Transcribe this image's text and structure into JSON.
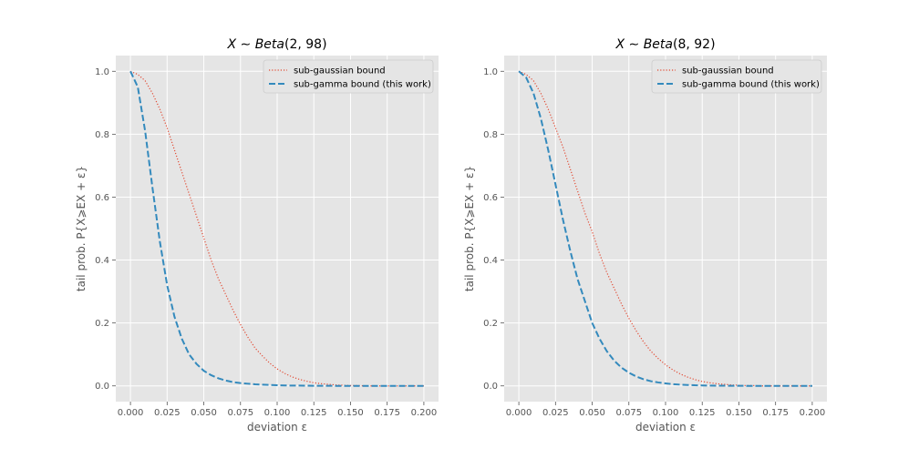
{
  "chart_data": [
    {
      "type": "line",
      "title_prefix": "X ∼ ",
      "title_dist": "Beta",
      "title_params": "(2, 98)",
      "xlabel": "deviation ε",
      "ylabel": "tail prob. P{X⩾EX + ε}",
      "xlim": [
        -0.01,
        0.21
      ],
      "ylim": [
        -0.05,
        1.05
      ],
      "xticks": [
        "0.000",
        "0.025",
        "0.050",
        "0.075",
        "0.100",
        "0.125",
        "0.150",
        "0.175",
        "0.200"
      ],
      "yticks": [
        "0.0",
        "0.2",
        "0.4",
        "0.6",
        "0.8",
        "1.0"
      ],
      "legend_position": "top-right",
      "grid": true,
      "series": [
        {
          "name": "sub-gaussian bound",
          "style": "dotted",
          "color": "#E24A33",
          "x": [
            0,
            0.005,
            0.01,
            0.015,
            0.02,
            0.025,
            0.03,
            0.035,
            0.04,
            0.045,
            0.05,
            0.055,
            0.06,
            0.065,
            0.07,
            0.075,
            0.08,
            0.085,
            0.09,
            0.095,
            0.1,
            0.105,
            0.11,
            0.115,
            0.12,
            0.125,
            0.13,
            0.135,
            0.14,
            0.145,
            0.15,
            0.155,
            0.16,
            0.165,
            0.17,
            0.175,
            0.18,
            0.185,
            0.19,
            0.195,
            0.2
          ],
          "y": [
            1.0,
            0.99,
            0.97,
            0.93,
            0.88,
            0.82,
            0.75,
            0.68,
            0.61,
            0.54,
            0.47,
            0.4,
            0.34,
            0.29,
            0.24,
            0.195,
            0.155,
            0.12,
            0.095,
            0.072,
            0.054,
            0.04,
            0.029,
            0.021,
            0.015,
            0.01,
            0.007,
            0.005,
            0.003,
            0.002,
            0.001,
            0.001,
            0.0,
            0.0,
            0.0,
            0.0,
            0.0,
            0.0,
            0.0,
            0.0,
            0.0
          ]
        },
        {
          "name": "sub-gamma bound (this work)",
          "style": "dashed",
          "color": "#348ABD",
          "x": [
            0,
            0.005,
            0.01,
            0.015,
            0.02,
            0.025,
            0.03,
            0.035,
            0.04,
            0.045,
            0.05,
            0.055,
            0.06,
            0.065,
            0.07,
            0.075,
            0.08,
            0.085,
            0.09,
            0.095,
            0.1,
            0.105,
            0.11,
            0.115,
            0.12,
            0.125,
            0.13,
            0.135,
            0.14,
            0.145,
            0.15,
            0.155,
            0.16,
            0.165,
            0.17,
            0.175,
            0.18,
            0.185,
            0.19,
            0.195,
            0.2
          ],
          "y": [
            1.0,
            0.95,
            0.81,
            0.63,
            0.46,
            0.32,
            0.22,
            0.15,
            0.1,
            0.07,
            0.048,
            0.034,
            0.024,
            0.017,
            0.012,
            0.009,
            0.007,
            0.005,
            0.004,
            0.003,
            0.002,
            0.0015,
            0.001,
            0.001,
            0.0005,
            0.0004,
            0.0003,
            0.0002,
            0.0001,
            0.0,
            0.0,
            0.0,
            0.0,
            0.0,
            0.0,
            0.0,
            0.0,
            0.0,
            0.0,
            0.0,
            0.0
          ]
        }
      ]
    },
    {
      "type": "line",
      "title_prefix": "X ∼ ",
      "title_dist": "Beta",
      "title_params": "(8, 92)",
      "xlabel": "deviation ε",
      "ylabel": "tail prob. P{X⩾EX + ε}",
      "xlim": [
        -0.01,
        0.21
      ],
      "ylim": [
        -0.05,
        1.05
      ],
      "xticks": [
        "0.000",
        "0.025",
        "0.050",
        "0.075",
        "0.100",
        "0.125",
        "0.150",
        "0.175",
        "0.200"
      ],
      "yticks": [
        "0.0",
        "0.2",
        "0.4",
        "0.6",
        "0.8",
        "1.0"
      ],
      "legend_position": "top-right",
      "grid": true,
      "series": [
        {
          "name": "sub-gaussian bound",
          "style": "dotted",
          "color": "#E24A33",
          "x": [
            0,
            0.005,
            0.01,
            0.015,
            0.02,
            0.025,
            0.03,
            0.035,
            0.04,
            0.045,
            0.05,
            0.055,
            0.06,
            0.065,
            0.07,
            0.075,
            0.08,
            0.085,
            0.09,
            0.095,
            0.1,
            0.105,
            0.11,
            0.115,
            0.12,
            0.125,
            0.13,
            0.135,
            0.14,
            0.145,
            0.15,
            0.155,
            0.16,
            0.165,
            0.17,
            0.175,
            0.18,
            0.185,
            0.19,
            0.195,
            0.2
          ],
          "y": [
            1.0,
            0.99,
            0.97,
            0.93,
            0.88,
            0.82,
            0.76,
            0.69,
            0.62,
            0.55,
            0.49,
            0.42,
            0.36,
            0.31,
            0.26,
            0.215,
            0.175,
            0.14,
            0.11,
            0.087,
            0.067,
            0.051,
            0.038,
            0.028,
            0.02,
            0.014,
            0.01,
            0.007,
            0.005,
            0.003,
            0.002,
            0.001,
            0.001,
            0.0,
            0.0,
            0.0,
            0.0,
            0.0,
            0.0,
            0.0,
            0.0
          ]
        },
        {
          "name": "sub-gamma bound (this work)",
          "style": "dashed",
          "color": "#348ABD",
          "x": [
            0,
            0.005,
            0.01,
            0.015,
            0.02,
            0.025,
            0.03,
            0.035,
            0.04,
            0.045,
            0.05,
            0.055,
            0.06,
            0.065,
            0.07,
            0.075,
            0.08,
            0.085,
            0.09,
            0.095,
            0.1,
            0.105,
            0.11,
            0.115,
            0.12,
            0.125,
            0.13,
            0.135,
            0.14,
            0.145,
            0.15,
            0.155,
            0.16,
            0.165,
            0.17,
            0.175,
            0.18,
            0.185,
            0.19,
            0.195,
            0.2
          ],
          "y": [
            1.0,
            0.98,
            0.93,
            0.85,
            0.75,
            0.64,
            0.53,
            0.43,
            0.34,
            0.27,
            0.2,
            0.15,
            0.11,
            0.08,
            0.058,
            0.042,
            0.03,
            0.021,
            0.015,
            0.011,
            0.008,
            0.0055,
            0.004,
            0.003,
            0.002,
            0.0015,
            0.001,
            0.0007,
            0.0005,
            0.0003,
            0.0002,
            0.0001,
            0.0,
            0.0,
            0.0,
            0.0,
            0.0,
            0.0,
            0.0,
            0.0,
            0.0
          ]
        }
      ]
    }
  ]
}
